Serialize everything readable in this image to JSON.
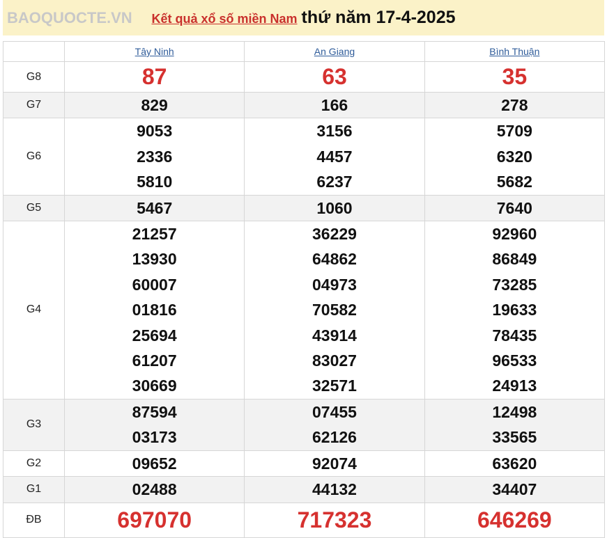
{
  "header": {
    "link": "Kết quả xổ số miền Nam",
    "date": "thứ năm 17-4-2025"
  },
  "provinces": [
    "Tây Ninh",
    "An Giang",
    "Bình Thuận"
  ],
  "rows": [
    {
      "label": "G8",
      "values": [
        [
          "87"
        ],
        [
          "63"
        ],
        [
          "35"
        ]
      ]
    },
    {
      "label": "G7",
      "values": [
        [
          "829"
        ],
        [
          "166"
        ],
        [
          "278"
        ]
      ]
    },
    {
      "label": "G6",
      "values": [
        [
          "9053",
          "2336",
          "5810"
        ],
        [
          "3156",
          "4457",
          "6237"
        ],
        [
          "5709",
          "6320",
          "5682"
        ]
      ]
    },
    {
      "label": "G5",
      "values": [
        [
          "5467"
        ],
        [
          "1060"
        ],
        [
          "7640"
        ]
      ]
    },
    {
      "label": "G4",
      "values": [
        [
          "21257",
          "13930",
          "60007",
          "01816",
          "25694",
          "61207",
          "30669"
        ],
        [
          "36229",
          "64862",
          "04973",
          "70582",
          "43914",
          "83027",
          "32571"
        ],
        [
          "92960",
          "86849",
          "73285",
          "19633",
          "78435",
          "96533",
          "24913"
        ]
      ]
    },
    {
      "label": "G3",
      "values": [
        [
          "87594",
          "03173"
        ],
        [
          "07455",
          "62126"
        ],
        [
          "12498",
          "33565"
        ]
      ]
    },
    {
      "label": "G2",
      "values": [
        [
          "09652"
        ],
        [
          "92074"
        ],
        [
          "63620"
        ]
      ]
    },
    {
      "label": "G1",
      "values": [
        [
          "02488"
        ],
        [
          "44132"
        ],
        [
          "34407"
        ]
      ]
    },
    {
      "label": "ĐB",
      "values": [
        [
          "697070"
        ],
        [
          "717323"
        ],
        [
          "646269"
        ]
      ]
    }
  ],
  "watermark": "BAOQUOCTE.VN",
  "colors": {
    "accent": "#d6312f",
    "header_bg": "#fbf2c8",
    "link": "#2f5c9a"
  }
}
